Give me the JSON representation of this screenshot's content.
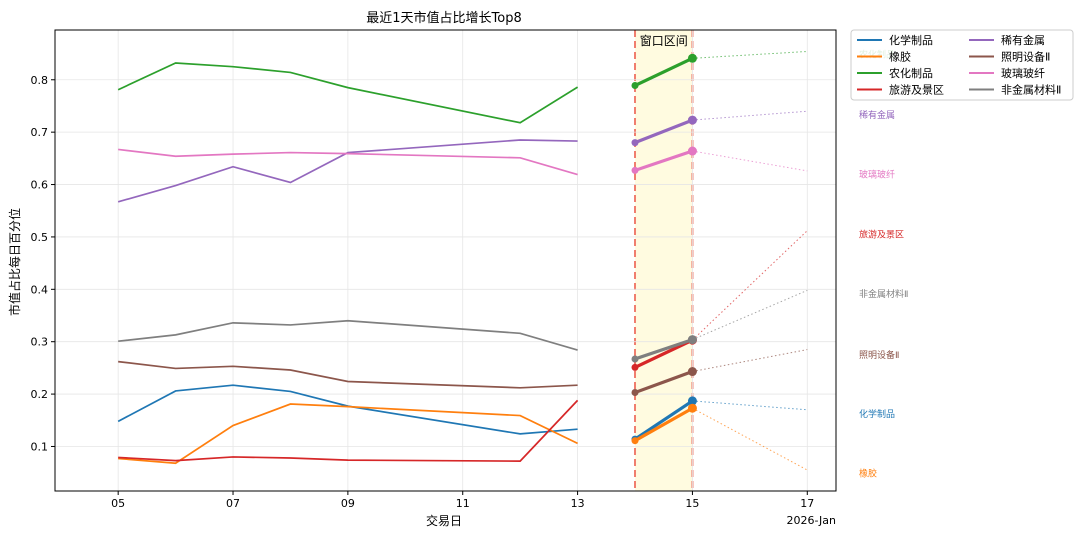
{
  "chart_data": {
    "type": "line",
    "title": "最近1天市值占比增长Top8",
    "xlabel": "交易日",
    "ylabel": "市值占比每日百分位",
    "x_ticks": [
      "05",
      "07",
      "09",
      "11",
      "13",
      "15",
      "17"
    ],
    "x_tick_values": [
      5,
      7,
      9,
      11,
      13,
      15,
      17
    ],
    "x_offset_text": "2026-Jan",
    "x_range": [
      3.9,
      17.5
    ],
    "ylim": [
      0.015,
      0.895
    ],
    "y_ticks": [
      0.1,
      0.2,
      0.3,
      0.4,
      0.5,
      0.6,
      0.7,
      0.8
    ],
    "y_tick_labels": [
      "0.1",
      "0.2",
      "0.3",
      "0.4",
      "0.5",
      "0.6",
      "0.7",
      "0.8"
    ],
    "grid": true,
    "window": {
      "label": "窗口区间",
      "x_start": 14,
      "x_end": 15,
      "fill_color": "#fffbe0",
      "line_color": "#f07e6e"
    },
    "legend_position": "outside-top-right",
    "series": [
      {
        "name": "化学制品",
        "color": "#1f77b4",
        "x": [
          5,
          6,
          7,
          8,
          9,
          12,
          13,
          14,
          15
        ],
        "values": [
          0.148,
          0.206,
          0.217,
          0.205,
          0.177,
          0.124,
          0.133,
          0.114,
          0.187
        ],
        "projection": [
          15,
          0.187,
          17,
          0.17
        ],
        "side_label": "化学制品",
        "side_label_y": 0.162
      },
      {
        "name": "橡胶",
        "color": "#ff7f0e",
        "x": [
          5,
          6,
          7,
          8,
          9,
          12,
          13,
          14,
          15
        ],
        "values": [
          0.077,
          0.068,
          0.14,
          0.181,
          0.176,
          0.159,
          0.106,
          0.111,
          0.173
        ],
        "projection": [
          15,
          0.173,
          17,
          0.055
        ],
        "side_label": "橡胶",
        "side_label_y": 0.048
      },
      {
        "name": "农化制品",
        "color": "#2ca02c",
        "x": [
          5,
          6,
          7,
          8,
          9,
          12,
          13,
          14,
          15
        ],
        "values": [
          0.781,
          0.832,
          0.825,
          0.814,
          0.785,
          0.718,
          0.786,
          0.789,
          0.841
        ],
        "projection": [
          15,
          0.841,
          17,
          0.854
        ],
        "side_label": "农化制品",
        "side_label_y": 0.848
      },
      {
        "name": "旅游及景区",
        "color": "#d62728",
        "x": [
          5,
          6,
          7,
          8,
          9,
          12,
          13,
          14,
          15
        ],
        "values": [
          0.079,
          0.073,
          0.08,
          0.078,
          0.074,
          0.072,
          0.188,
          0.251,
          0.303
        ],
        "projection": [
          15,
          0.303,
          17,
          0.512
        ],
        "side_label": "旅游及景区",
        "side_label_y": 0.505
      },
      {
        "name": "稀有金属",
        "color": "#9467bd",
        "x": [
          5,
          6,
          7,
          8,
          9,
          12,
          13,
          14,
          15
        ],
        "values": [
          0.567,
          0.598,
          0.634,
          0.604,
          0.661,
          0.685,
          0.683,
          0.68,
          0.723
        ],
        "projection": [
          15,
          0.723,
          17,
          0.74
        ],
        "side_label": "稀有金属",
        "side_label_y": 0.733
      },
      {
        "name": "照明设备Ⅱ",
        "color": "#8c564b",
        "x": [
          5,
          6,
          7,
          8,
          9,
          12,
          13,
          14,
          15
        ],
        "values": [
          0.262,
          0.249,
          0.253,
          0.246,
          0.224,
          0.212,
          0.217,
          0.203,
          0.243
        ],
        "projection": [
          15,
          0.243,
          17,
          0.285
        ],
        "side_label": "照明设备Ⅱ",
        "side_label_y": 0.275
      },
      {
        "name": "玻璃玻纤",
        "color": "#e377c2",
        "x": [
          5,
          6,
          7,
          8,
          9,
          12,
          13,
          14,
          15
        ],
        "values": [
          0.667,
          0.654,
          0.658,
          0.661,
          0.659,
          0.651,
          0.619,
          0.627,
          0.664
        ],
        "projection": [
          15,
          0.664,
          17,
          0.626
        ],
        "side_label": "玻璃玻纤",
        "side_label_y": 0.619
      },
      {
        "name": "非金属材料Ⅱ",
        "color": "#7f7f7f",
        "x": [
          5,
          6,
          7,
          8,
          9,
          12,
          13,
          14,
          15
        ],
        "values": [
          0.301,
          0.313,
          0.336,
          0.332,
          0.34,
          0.316,
          0.284,
          0.267,
          0.304
        ],
        "projection": [
          15,
          0.304,
          17,
          0.398
        ],
        "side_label": "非金属材料Ⅱ",
        "side_label_y": 0.391
      }
    ]
  }
}
